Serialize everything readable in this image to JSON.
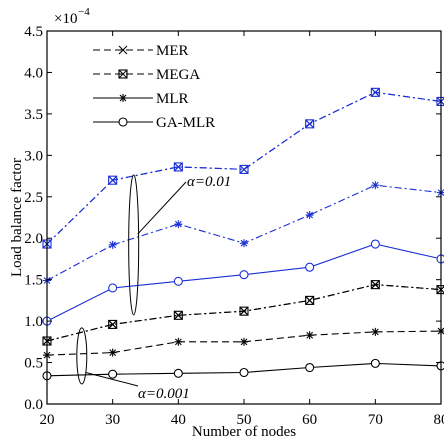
{
  "chart_data": {
    "type": "line",
    "title": "",
    "xlabel": "Number of nodes",
    "ylabel": "Load balance factor",
    "scale_label": "×10",
    "scale_exp": "−4",
    "x": [
      20,
      30,
      40,
      50,
      60,
      70,
      80
    ],
    "xlim": [
      20,
      80
    ],
    "ylim": [
      0,
      4.5
    ],
    "x_ticks": [
      "20",
      "30",
      "40",
      "50",
      "60",
      "70",
      "80"
    ],
    "y_ticks": [
      "0.0",
      "0.5",
      "1.0",
      "1.5",
      "2.0",
      "2.5",
      "3.0",
      "3.5",
      "4.0",
      "4.5"
    ],
    "grid": false,
    "legend": {
      "position": "top-left",
      "entries": [
        {
          "label": "MER",
          "line": "dashed",
          "marker": "x"
        },
        {
          "label": "MEGA",
          "line": "dashed",
          "marker": "square"
        },
        {
          "label": "MLR",
          "line": "solid",
          "marker": "asterisk"
        },
        {
          "label": "GA-MLR",
          "line": "solid",
          "marker": "circle"
        }
      ]
    },
    "groups": [
      {
        "label": "α=0.01",
        "color": "#1a2fd6",
        "series": [
          {
            "ref": "MEGA",
            "line": "dashdot",
            "marker": "square",
            "values": [
              1.93,
              2.7,
              2.86,
              2.83,
              3.38,
              3.76,
              3.65
            ]
          },
          {
            "ref": "MER",
            "line": "dashdot",
            "marker": "x",
            "values": [
              1.93,
              2.7,
              2.86,
              2.83,
              3.38,
              3.76,
              3.65
            ]
          },
          {
            "ref": "MLR",
            "line": "dashdot",
            "marker": "asterisk",
            "values": [
              1.49,
              1.92,
              2.17,
              1.94,
              2.28,
              2.64,
              2.55
            ]
          },
          {
            "ref": "GA-MLR",
            "line": "solid",
            "marker": "circle",
            "values": [
              1.0,
              1.4,
              1.48,
              1.56,
              1.65,
              1.93,
              1.75
            ]
          }
        ]
      },
      {
        "label": "α=0.001",
        "color": "#000000",
        "series": [
          {
            "ref": "MEGA",
            "line": "dashdot",
            "marker": "square",
            "values": [
              0.76,
              0.96,
              1.07,
              1.12,
              1.25,
              1.44,
              1.38
            ]
          },
          {
            "ref": "MER",
            "line": "dashdot",
            "marker": "x",
            "values": [
              0.76,
              0.96,
              1.07,
              1.12,
              1.25,
              1.44,
              1.38
            ]
          },
          {
            "ref": "MLR",
            "line": "dashed",
            "marker": "asterisk",
            "values": [
              0.59,
              0.62,
              0.75,
              0.75,
              0.83,
              0.87,
              0.88
            ]
          },
          {
            "ref": "GA-MLR",
            "line": "solid",
            "marker": "circle",
            "values": [
              0.34,
              0.36,
              0.37,
              0.38,
              0.44,
              0.49,
              0.46
            ]
          }
        ]
      }
    ],
    "annotations": [
      {
        "text": "α=0.01",
        "group": 0
      },
      {
        "text": "α=0.001",
        "group": 1
      }
    ]
  }
}
